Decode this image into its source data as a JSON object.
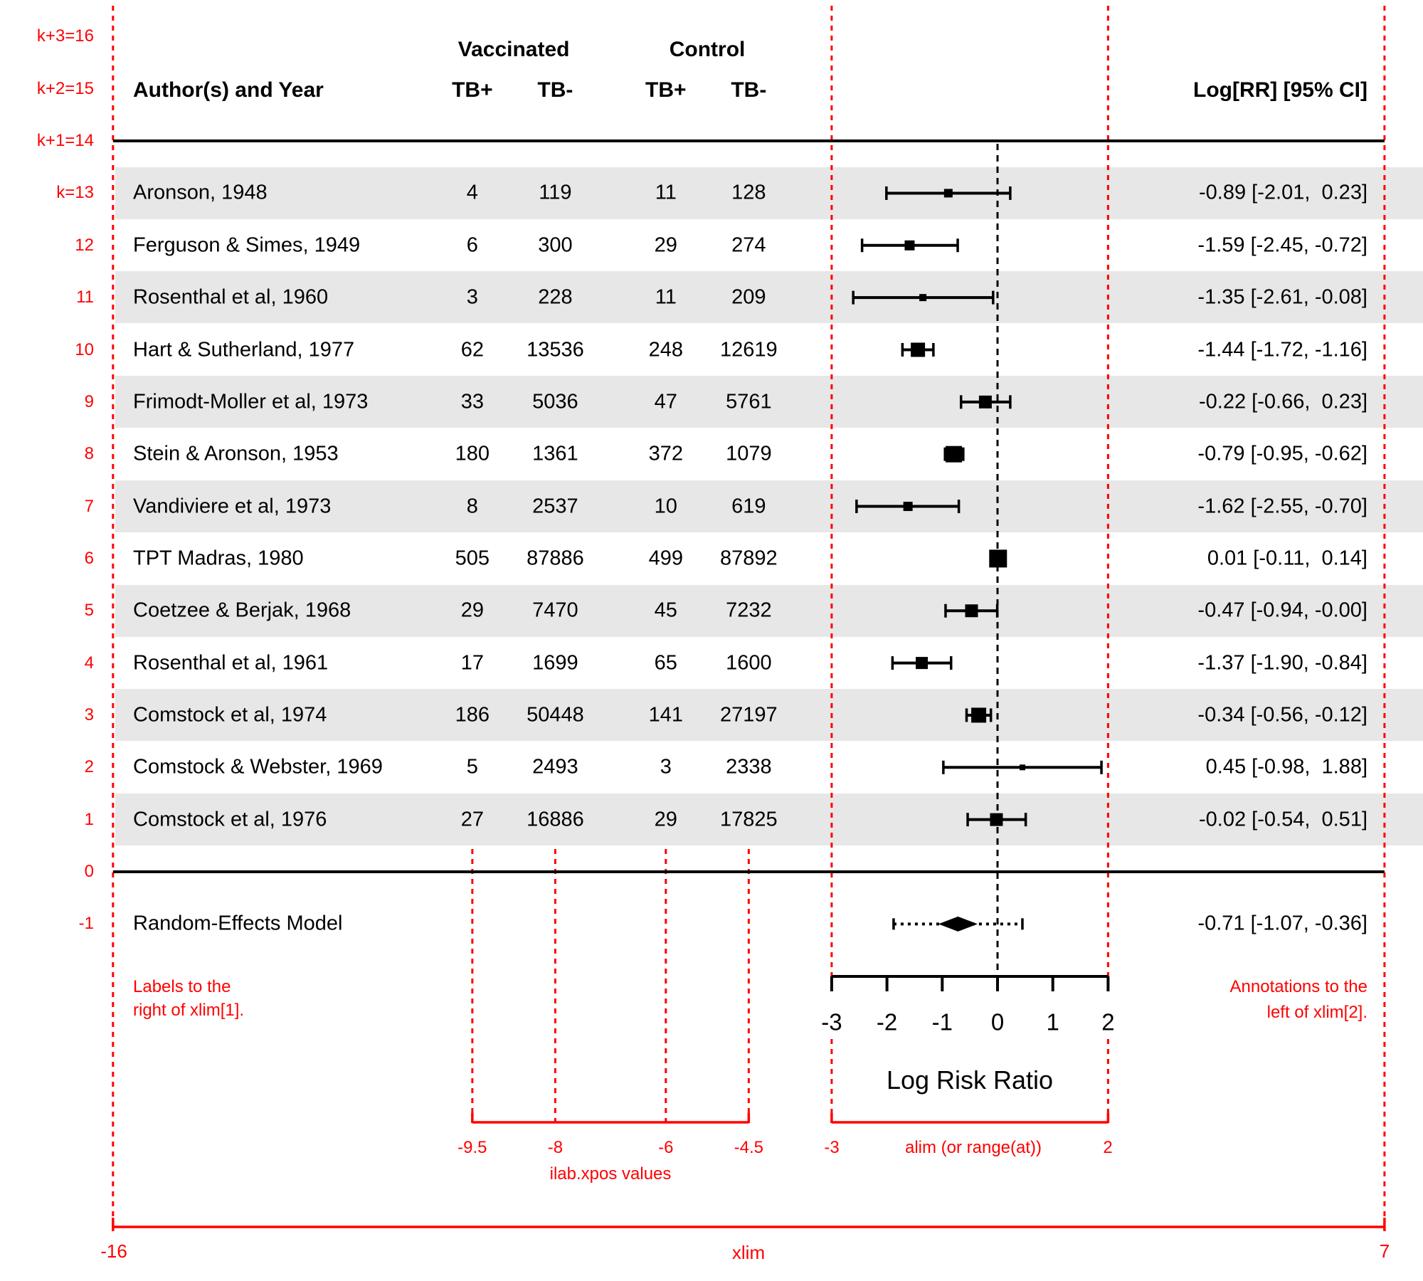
{
  "colors": {
    "accent_red": "#ff0000",
    "shade_gray": "#e7e7e7",
    "text_black": "#000000"
  },
  "header": {
    "author": "Author(s) and Year",
    "group_vaccinated": "Vaccinated",
    "group_control": "Control",
    "col_tb_pos": "TB+",
    "col_tb_neg": "TB-",
    "annotation": "Log[RR] [95% CI]"
  },
  "row_axis_labels": [
    {
      "k": 16,
      "label": "k+3=16"
    },
    {
      "k": 15,
      "label": "k+2=15"
    },
    {
      "k": 14,
      "label": "k+1=14"
    },
    {
      "k": 13,
      "label": "k=13"
    },
    {
      "k": 12,
      "label": "12"
    },
    {
      "k": 11,
      "label": "11"
    },
    {
      "k": 10,
      "label": "10"
    },
    {
      "k": 9,
      "label": "9"
    },
    {
      "k": 8,
      "label": "8"
    },
    {
      "k": 7,
      "label": "7"
    },
    {
      "k": 6,
      "label": "6"
    },
    {
      "k": 5,
      "label": "5"
    },
    {
      "k": 4,
      "label": "4"
    },
    {
      "k": 3,
      "label": "3"
    },
    {
      "k": 2,
      "label": "2"
    },
    {
      "k": 1,
      "label": "1"
    },
    {
      "k": 0,
      "label": "0"
    },
    {
      "k": -1,
      "label": "-1"
    }
  ],
  "red_annotations": {
    "left_note": [
      "Labels to the",
      "right of xlim[1]."
    ],
    "right_note": [
      "Annotations to the",
      "left of xlim[2]."
    ],
    "alim_bracket": {
      "left": "-3",
      "caption": "alim (or range(at))",
      "right": "2"
    },
    "ilab_bracket": {
      "ticks": [
        "-9.5",
        "-8",
        "-6",
        "-4.5"
      ],
      "caption": "ilab.xpos values"
    },
    "xlim_axis": {
      "left": "-16",
      "caption": "xlim",
      "right": "7"
    }
  },
  "chart_data": {
    "type": "scatter",
    "subtype": "forest-plot-meta-analysis",
    "title": "",
    "xlabel": "Log Risk Ratio",
    "xlim": [
      -16,
      7
    ],
    "alim": [
      -3,
      2
    ],
    "x_ticks": [
      -3,
      -2,
      -1,
      0,
      1,
      2
    ],
    "ilab_xpos": [
      -9.5,
      -8,
      -6,
      -4.5
    ],
    "grid": false,
    "legend": false,
    "studies": [
      {
        "k": 13,
        "author": "Aronson, 1948",
        "vac_tb_pos": "4",
        "vac_tb_neg": "119",
        "con_tb_pos": "11",
        "con_tb_neg": "128",
        "estimate": -0.89,
        "ci_lb": -2.01,
        "ci_ub": 0.23,
        "annotation": "-0.89 [-2.01,  0.23]",
        "psize": 12,
        "shaded": true
      },
      {
        "k": 12,
        "author": "Ferguson & Simes, 1949",
        "vac_tb_pos": "6",
        "vac_tb_neg": "300",
        "con_tb_pos": "29",
        "con_tb_neg": "274",
        "estimate": -1.59,
        "ci_lb": -2.45,
        "ci_ub": -0.72,
        "annotation": "-1.59 [-2.45, -0.72]",
        "psize": 14,
        "shaded": false
      },
      {
        "k": 11,
        "author": "Rosenthal et al, 1960",
        "vac_tb_pos": "3",
        "vac_tb_neg": "228",
        "con_tb_pos": "11",
        "con_tb_neg": "209",
        "estimate": -1.35,
        "ci_lb": -2.61,
        "ci_ub": -0.08,
        "annotation": "-1.35 [-2.61, -0.08]",
        "psize": 10,
        "shaded": true
      },
      {
        "k": 10,
        "author": "Hart & Sutherland, 1977",
        "vac_tb_pos": "62",
        "vac_tb_neg": "13536",
        "con_tb_pos": "248",
        "con_tb_neg": "12619",
        "estimate": -1.44,
        "ci_lb": -1.72,
        "ci_ub": -1.16,
        "annotation": "-1.44 [-1.72, -1.16]",
        "psize": 20,
        "shaded": false
      },
      {
        "k": 9,
        "author": "Frimodt-Moller et al, 1973",
        "vac_tb_pos": "33",
        "vac_tb_neg": "5036",
        "con_tb_pos": "47",
        "con_tb_neg": "5761",
        "estimate": -0.22,
        "ci_lb": -0.66,
        "ci_ub": 0.23,
        "annotation": "-0.22 [-0.66,  0.23]",
        "psize": 18,
        "shaded": true
      },
      {
        "k": 8,
        "author": "Stein & Aronson, 1953",
        "vac_tb_pos": "180",
        "vac_tb_neg": "1361",
        "con_tb_pos": "372",
        "con_tb_neg": "1079",
        "estimate": -0.79,
        "ci_lb": -0.95,
        "ci_ub": -0.62,
        "annotation": "-0.79 [-0.95, -0.62]",
        "psize": 23,
        "shaded": false
      },
      {
        "k": 7,
        "author": "Vandiviere et al, 1973",
        "vac_tb_pos": "8",
        "vac_tb_neg": "2537",
        "con_tb_pos": "10",
        "con_tb_neg": "619",
        "estimate": -1.62,
        "ci_lb": -2.55,
        "ci_ub": -0.7,
        "annotation": "-1.62 [-2.55, -0.70]",
        "psize": 13,
        "shaded": true
      },
      {
        "k": 6,
        "author": "TPT Madras, 1980",
        "vac_tb_pos": "505",
        "vac_tb_neg": "87886",
        "con_tb_pos": "499",
        "con_tb_neg": "87892",
        "estimate": 0.01,
        "ci_lb": -0.11,
        "ci_ub": 0.14,
        "annotation": "0.01 [-0.11,  0.14]",
        "psize": 25,
        "shaded": false
      },
      {
        "k": 5,
        "author": "Coetzee & Berjak, 1968",
        "vac_tb_pos": "29",
        "vac_tb_neg": "7470",
        "con_tb_pos": "45",
        "con_tb_neg": "7232",
        "estimate": -0.47,
        "ci_lb": -0.94,
        "ci_ub": -0.005,
        "annotation": "-0.47 [-0.94, -0.00]",
        "psize": 18,
        "shaded": true
      },
      {
        "k": 4,
        "author": "Rosenthal et al, 1961",
        "vac_tb_pos": "17",
        "vac_tb_neg": "1699",
        "con_tb_pos": "65",
        "con_tb_neg": "1600",
        "estimate": -1.37,
        "ci_lb": -1.9,
        "ci_ub": -0.84,
        "annotation": "-1.37 [-1.90, -0.84]",
        "psize": 17,
        "shaded": false
      },
      {
        "k": 3,
        "author": "Comstock et al, 1974",
        "vac_tb_pos": "186",
        "vac_tb_neg": "50448",
        "con_tb_pos": "141",
        "con_tb_neg": "27197",
        "estimate": -0.34,
        "ci_lb": -0.56,
        "ci_ub": -0.12,
        "annotation": "-0.34 [-0.56, -0.12]",
        "psize": 21,
        "shaded": true
      },
      {
        "k": 2,
        "author": "Comstock & Webster, 1969",
        "vac_tb_pos": "5",
        "vac_tb_neg": "2493",
        "con_tb_pos": "3",
        "con_tb_neg": "2338",
        "estimate": 0.45,
        "ci_lb": -0.98,
        "ci_ub": 1.88,
        "annotation": "0.45 [-0.98,  1.88]",
        "psize": 8,
        "shaded": false
      },
      {
        "k": 1,
        "author": "Comstock et al, 1976",
        "vac_tb_pos": "27",
        "vac_tb_neg": "16886",
        "con_tb_pos": "29",
        "con_tb_neg": "17825",
        "estimate": -0.02,
        "ci_lb": -0.54,
        "ci_ub": 0.51,
        "annotation": "-0.02 [-0.54,  0.51]",
        "psize": 18,
        "shaded": true
      }
    ],
    "summary": {
      "k": -1,
      "label": "Random-Effects Model",
      "estimate": -0.71,
      "ci_lb": -1.07,
      "ci_ub": -0.36,
      "pi_lb": -1.88,
      "pi_ub": 0.45,
      "annotation": "-0.71 [-1.07, -0.36]"
    }
  }
}
